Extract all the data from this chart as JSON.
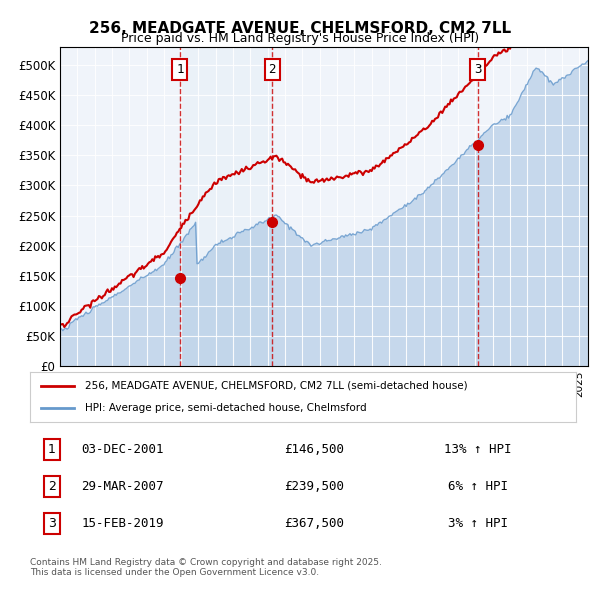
{
  "title": "256, MEADGATE AVENUE, CHELMSFORD, CM2 7LL",
  "subtitle": "Price paid vs. HM Land Registry's House Price Index (HPI)",
  "legend_line1": "256, MEADGATE AVENUE, CHELMSFORD, CM2 7LL (semi-detached house)",
  "legend_line2": "HPI: Average price, semi-detached house, Chelmsford",
  "footer": "Contains HM Land Registry data © Crown copyright and database right 2025.\nThis data is licensed under the Open Government Licence v3.0.",
  "price_color": "#cc0000",
  "hpi_color": "#6699cc",
  "background_color": "#dce9f5",
  "plot_bg": "#f0f4fa",
  "vline_color": "#cc0000",
  "transactions": [
    {
      "num": 1,
      "date": "03-DEC-2001",
      "price": 146500,
      "pct": "13%",
      "year_x": 2001.92
    },
    {
      "num": 2,
      "date": "29-MAR-2007",
      "price": 239500,
      "pct": "6%",
      "year_x": 2007.25
    },
    {
      "num": 3,
      "date": "15-FEB-2019",
      "price": 367500,
      "pct": "3%",
      "year_x": 2019.12
    }
  ],
  "ylim": [
    0,
    530000
  ],
  "yticks": [
    0,
    50000,
    100000,
    150000,
    200000,
    250000,
    300000,
    350000,
    400000,
    450000,
    500000
  ],
  "ytick_labels": [
    "£0",
    "£50K",
    "£100K",
    "£150K",
    "£200K",
    "£250K",
    "£300K",
    "£350K",
    "£400K",
    "£450K",
    "£500K"
  ],
  "xlim_start": 1995.0,
  "xlim_end": 2025.5
}
